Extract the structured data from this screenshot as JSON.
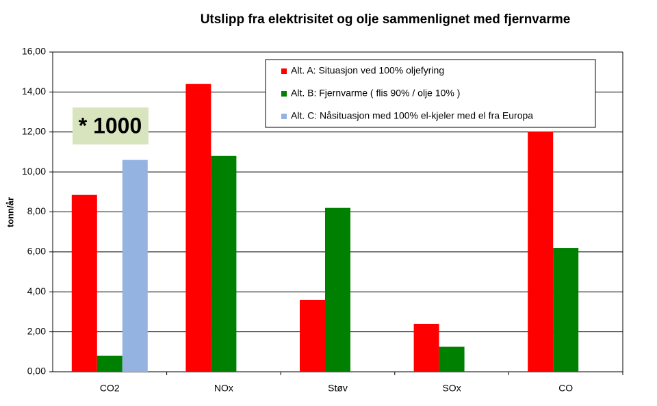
{
  "chart_data": {
    "type": "bar",
    "title": "Utslipp fra elektrisitet og olje sammenlignet med fjernvarme",
    "y_label": "tonn/år",
    "annotation": "* 1000",
    "categories": [
      "CO2",
      "NOx",
      "Støv",
      "SOx",
      "CO"
    ],
    "series": [
      {
        "name": "Alt. A: Situasjon ved 100% oljefyring",
        "color": "#ff0000",
        "values": [
          8.85,
          14.4,
          3.6,
          2.4,
          12.0
        ]
      },
      {
        "name": "Alt. B:  Fjernvarme ( flis 90% / olje 10% )",
        "color": "#008000",
        "values": [
          0.8,
          10.8,
          8.2,
          1.25,
          6.2
        ]
      },
      {
        "name": "Alt. C:  Nåsituasjon med 100% el-kjeler med el fra Europa",
        "color": "#95b3e1",
        "values": [
          10.6,
          null,
          null,
          null,
          null
        ]
      }
    ],
    "ylim": [
      0,
      16
    ],
    "yticks": [
      {
        "value": 0,
        "label": "0,00"
      },
      {
        "value": 2,
        "label": "2,00"
      },
      {
        "value": 4,
        "label": "4,00"
      },
      {
        "value": 6,
        "label": "6,00"
      },
      {
        "value": 8,
        "label": "8,00"
      },
      {
        "value": 10,
        "label": "10,00"
      },
      {
        "value": 12,
        "label": "12,00"
      },
      {
        "value": 14,
        "label": "14,00"
      },
      {
        "value": 16,
        "label": "16,00"
      }
    ],
    "grid": true,
    "legend": "top-right"
  }
}
